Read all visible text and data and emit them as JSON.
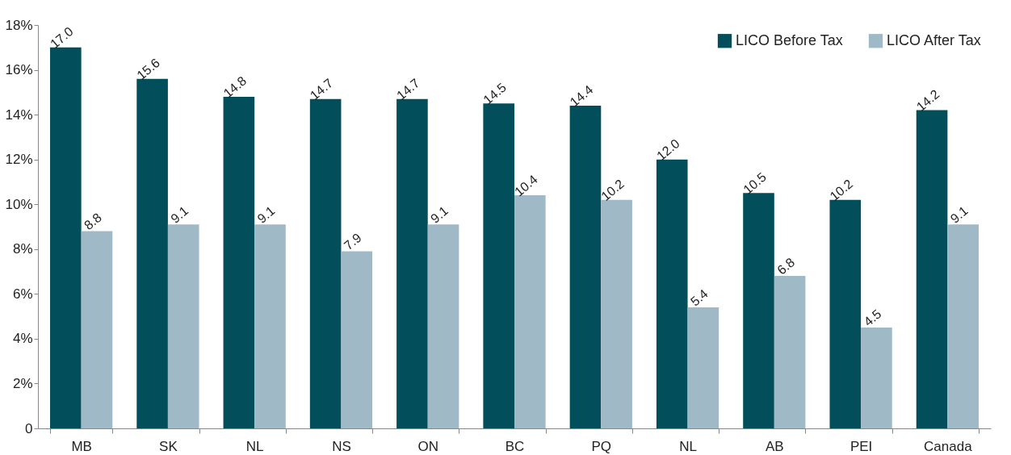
{
  "chart_data": {
    "type": "bar",
    "categories": [
      "MB",
      "SK",
      "NL",
      "NS",
      "ON",
      "BC",
      "PQ",
      "NL",
      "AB",
      "PEI",
      "Canada"
    ],
    "series": [
      {
        "name": "LICO Before Tax",
        "color": "#034e5b",
        "values": [
          17.0,
          15.6,
          14.8,
          14.7,
          14.7,
          14.5,
          14.4,
          12.0,
          10.5,
          10.2,
          14.2
        ],
        "value_labels": [
          "17.0",
          "15.6",
          "14.8",
          "14.7",
          "14.7",
          "14.5",
          "14.4",
          "12.0",
          "10.5",
          "10.2",
          "14.2"
        ]
      },
      {
        "name": "LICO After Tax",
        "color": "#a0b9c6",
        "values": [
          8.8,
          9.1,
          9.1,
          7.9,
          9.1,
          10.4,
          10.2,
          5.4,
          6.8,
          4.5,
          9.1
        ],
        "value_labels": [
          "8.8",
          "9.1",
          "9.1",
          "7.9",
          "9.1",
          "10.4",
          "10.2",
          "5.4",
          "6.8",
          "4.5",
          "9.1"
        ]
      }
    ],
    "ylim": [
      0,
      18
    ],
    "yticks": [
      {
        "value": 0,
        "label": "0"
      },
      {
        "value": 2,
        "label": "2%"
      },
      {
        "value": 4,
        "label": "4%"
      },
      {
        "value": 6,
        "label": "6%"
      },
      {
        "value": 8,
        "label": "8%"
      },
      {
        "value": 10,
        "label": "10%"
      },
      {
        "value": 12,
        "label": "12%"
      },
      {
        "value": 14,
        "label": "14%"
      },
      {
        "value": 16,
        "label": "16%"
      },
      {
        "value": 18,
        "label": "18%"
      }
    ],
    "grid": false,
    "legend": "top right"
  }
}
